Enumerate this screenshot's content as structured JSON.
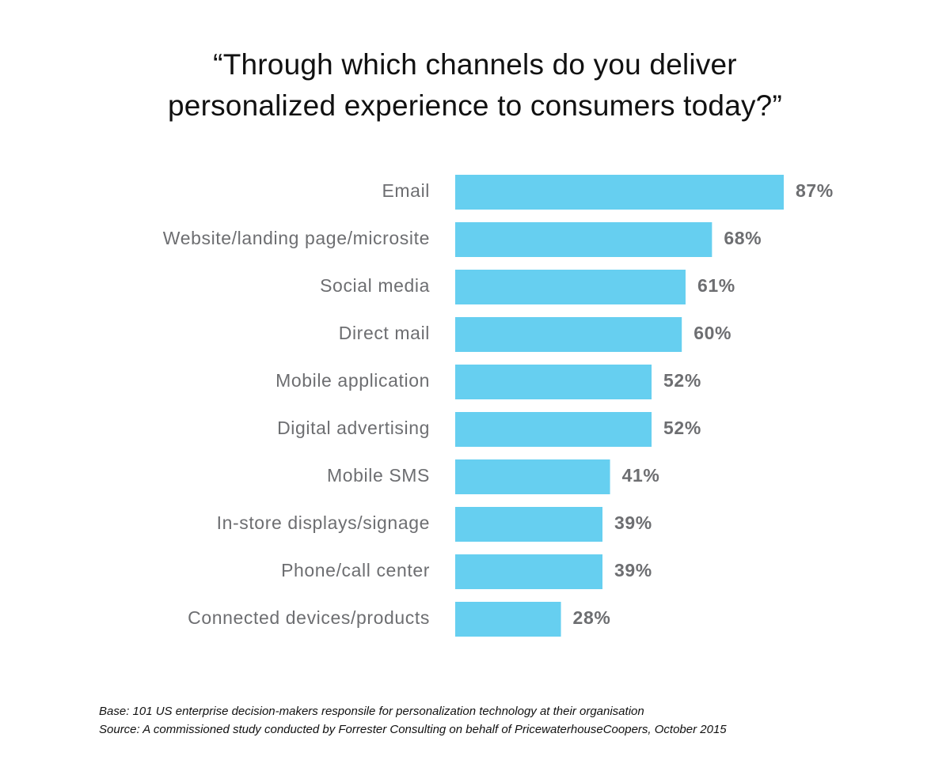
{
  "chart_data": {
    "type": "bar",
    "orientation": "horizontal",
    "title": "“Through which channels do you deliver personalized experience to consumers today?”",
    "categories": [
      "Email",
      "Website/landing page/microsite",
      "Social media",
      "Direct mail",
      "Mobile application",
      "Digital advertising",
      "Mobile SMS",
      "In-store displays/signage",
      "Phone/call center",
      "Connected devices/products"
    ],
    "values": [
      87,
      68,
      61,
      60,
      52,
      52,
      41,
      39,
      39,
      28
    ],
    "value_labels": [
      "87%",
      "68%",
      "61%",
      "60%",
      "52%",
      "52%",
      "41%",
      "39%",
      "39%",
      "28%"
    ],
    "color": "#66cff0",
    "notes": [
      "Base: 101 US enterprise decision-makers responsile for personalization technology at their organisation",
      "Source: A commissioned study conducted by Forrester Consulting on behalf of PricewaterhouseCoopers, October 2015"
    ]
  }
}
